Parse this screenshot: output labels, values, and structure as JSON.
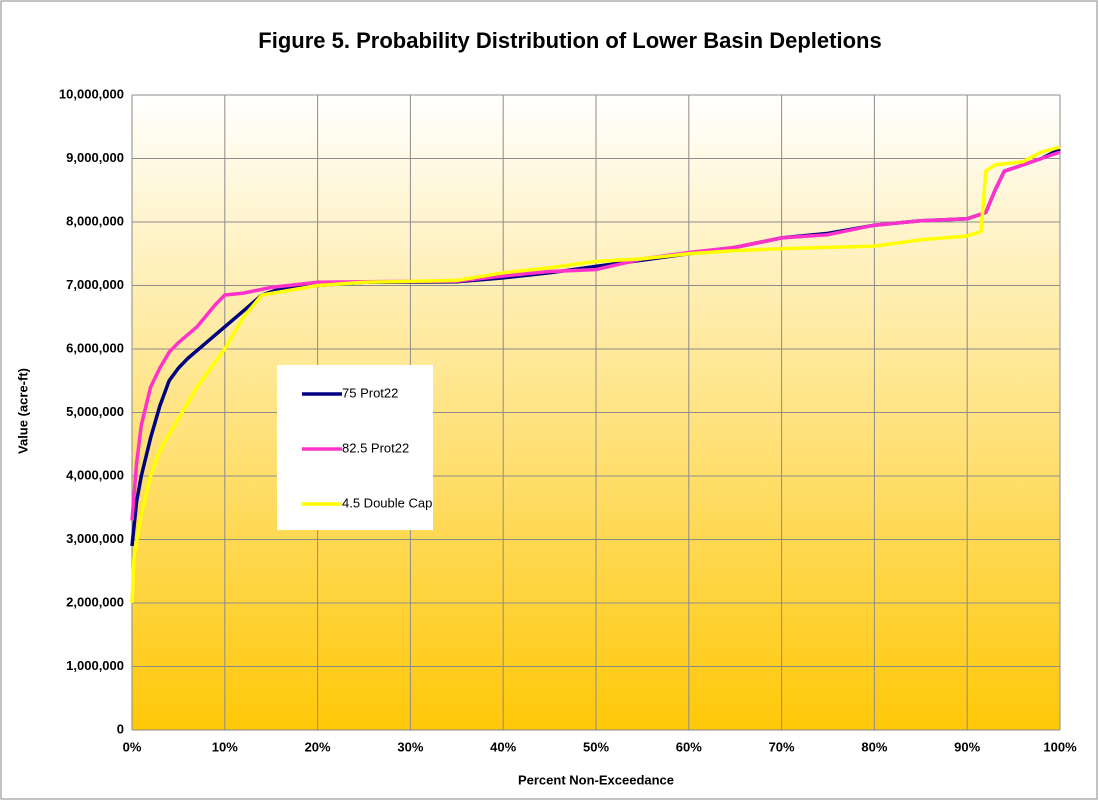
{
  "chart_data": {
    "type": "line",
    "title": "Figure 5. Probability Distribution of Lower Basin Depletions",
    "x_label": "Percent Non-Exceedance",
    "y_label": "Value (acre-ft)",
    "xlim": [
      0,
      100
    ],
    "ylim": [
      0,
      10000000
    ],
    "xticks": [
      {
        "value": 0,
        "label": "0%"
      },
      {
        "value": 10,
        "label": "10%"
      },
      {
        "value": 20,
        "label": "20%"
      },
      {
        "value": 30,
        "label": "30%"
      },
      {
        "value": 40,
        "label": "40%"
      },
      {
        "value": 50,
        "label": "50%"
      },
      {
        "value": 60,
        "label": "60%"
      },
      {
        "value": 70,
        "label": "70%"
      },
      {
        "value": 80,
        "label": "80%"
      },
      {
        "value": 90,
        "label": "90%"
      },
      {
        "value": 100,
        "label": "100%"
      }
    ],
    "yticks": [
      0,
      {
        "value": 1000000,
        "label": "1,000,000"
      },
      {
        "value": 2000000,
        "label": "2,000,000"
      },
      {
        "value": 3000000,
        "label": "3,000,000"
      },
      {
        "value": 4000000,
        "label": "4,000,000"
      },
      {
        "value": 5000000,
        "label": "5,000,000"
      },
      {
        "value": 6000000,
        "label": "6,000,000"
      },
      {
        "value": 7000000,
        "label": "7,000,000"
      },
      {
        "value": 8000000,
        "label": "8,000,000"
      },
      {
        "value": 9000000,
        "label": "9,000,000"
      },
      {
        "value": 10000000,
        "label": "10,000,000"
      }
    ],
    "grid": true,
    "series": [
      {
        "name": "75 Prot22",
        "color": "#000080",
        "x": [
          0,
          0.5,
          1,
          2,
          3,
          4,
          5,
          6,
          8,
          10,
          12,
          14,
          16,
          20,
          25,
          35,
          40,
          45,
          50,
          55,
          60,
          65,
          70,
          75,
          80,
          85,
          90,
          92,
          93,
          94,
          96,
          98,
          100
        ],
        "values": [
          2900000,
          3600000,
          4000000,
          4600000,
          5100000,
          5500000,
          5700000,
          5850000,
          6100000,
          6350000,
          6600000,
          6850000,
          6950000,
          7000000,
          7050000,
          7060000,
          7120000,
          7200000,
          7300000,
          7400000,
          7500000,
          7600000,
          7750000,
          7820000,
          7950000,
          8020000,
          8050000,
          8150000,
          8500000,
          8800000,
          8900000,
          9000000,
          9150000
        ]
      },
      {
        "name": "82.5 Prot22",
        "color": "#ff33cc",
        "x": [
          0,
          0.5,
          1,
          2,
          3,
          4,
          5,
          7,
          9,
          10,
          12,
          15,
          20,
          25,
          35,
          40,
          45,
          50,
          55,
          60,
          65,
          70,
          75,
          80,
          85,
          90,
          92,
          93,
          94,
          96,
          98,
          100
        ],
        "values": [
          3300000,
          4200000,
          4800000,
          5400000,
          5700000,
          5950000,
          6100000,
          6350000,
          6700000,
          6850000,
          6880000,
          6970000,
          7050000,
          7060000,
          7070000,
          7150000,
          7220000,
          7250000,
          7420000,
          7520000,
          7600000,
          7750000,
          7800000,
          7950000,
          8020000,
          8050000,
          8150000,
          8500000,
          8800000,
          8900000,
          9000000,
          9100000
        ]
      },
      {
        "name": "4.5 Double Cap",
        "color": "#ffff00",
        "x": [
          0,
          0.2,
          1,
          2,
          3,
          5,
          7,
          9,
          10,
          12,
          14,
          16,
          20,
          25,
          35,
          40,
          45,
          50,
          55,
          60,
          65,
          70,
          75,
          80,
          85,
          90,
          91.5,
          92,
          93,
          96,
          98,
          100
        ],
        "values": [
          2000000,
          2700000,
          3400000,
          4000000,
          4400000,
          4900000,
          5400000,
          5800000,
          6000000,
          6500000,
          6850000,
          6900000,
          7000000,
          7050000,
          7080000,
          7200000,
          7280000,
          7380000,
          7420000,
          7500000,
          7550000,
          7580000,
          7600000,
          7620000,
          7720000,
          7780000,
          7850000,
          8800000,
          8900000,
          8950000,
          9100000,
          9180000
        ]
      }
    ]
  }
}
